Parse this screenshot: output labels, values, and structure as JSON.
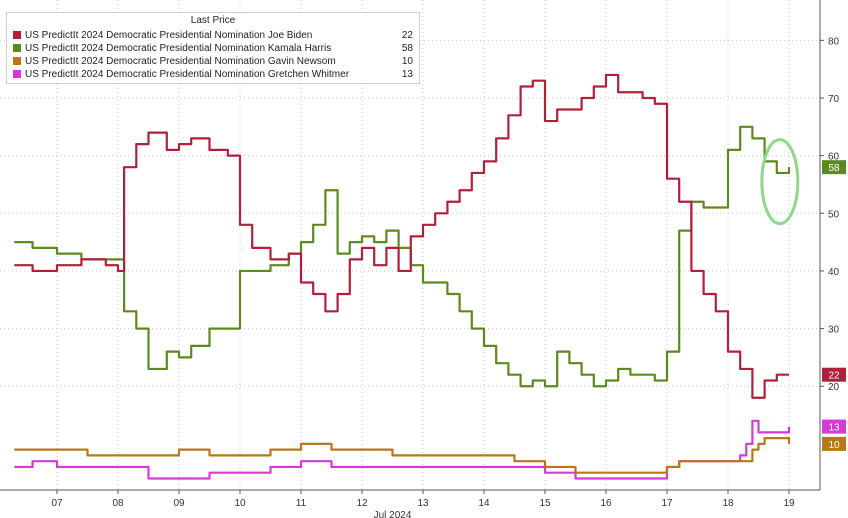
{
  "chart_data": {
    "type": "line",
    "legend_title": "Last Price",
    "legend_placement": "top-left",
    "x_tick_labels": [
      "07",
      "08",
      "09",
      "10",
      "11",
      "12",
      "13",
      "14",
      "15",
      "16",
      "17",
      "18",
      "19"
    ],
    "x_sublabel": "Jul 2024",
    "y_axis_side": "right",
    "ylim": [
      2,
      87
    ],
    "y_ticks": [
      20,
      30,
      40,
      50,
      60,
      70,
      80
    ],
    "grid": true,
    "series": [
      {
        "name": "US PredictIt 2024 Democratic Presidential Nomination Joe Biden",
        "last": "22",
        "color": "#b0203a",
        "x": [
          6.3,
          6.6,
          7.0,
          7.4,
          7.8,
          8.0,
          8.1,
          8.3,
          8.5,
          8.8,
          9.0,
          9.2,
          9.5,
          9.8,
          10.0,
          10.2,
          10.5,
          10.8,
          11.0,
          11.2,
          11.4,
          11.6,
          11.8,
          12.0,
          12.2,
          12.4,
          12.6,
          12.8,
          13.0,
          13.2,
          13.4,
          13.6,
          13.8,
          14.0,
          14.2,
          14.4,
          14.6,
          14.8,
          15.0,
          15.2,
          15.4,
          15.6,
          15.8,
          16.0,
          16.2,
          16.4,
          16.6,
          16.8,
          17.0,
          17.2,
          17.4,
          17.6,
          17.8,
          18.0,
          18.2,
          18.4,
          18.6,
          18.8,
          19.0
        ],
        "y": [
          41,
          40,
          41,
          42,
          41,
          40,
          58,
          62,
          64,
          61,
          62,
          63,
          61,
          60,
          48,
          44,
          42,
          43,
          38,
          36,
          33,
          36,
          42,
          44,
          41,
          44,
          40,
          46,
          48,
          50,
          52,
          54,
          57,
          59,
          63,
          67,
          72,
          73,
          66,
          68,
          68,
          70,
          72,
          74,
          71,
          71,
          70,
          69,
          56,
          52,
          40,
          36,
          33,
          26,
          23,
          18,
          21,
          22,
          22
        ]
      },
      {
        "name": "US PredictIt 2024 Democratic Presidential Nomination Kamala Harris",
        "last": "58",
        "color": "#5c8a1e",
        "x": [
          6.3,
          6.6,
          7.0,
          7.4,
          7.8,
          8.0,
          8.1,
          8.3,
          8.5,
          8.8,
          9.0,
          9.2,
          9.5,
          9.8,
          10.0,
          10.2,
          10.5,
          10.8,
          11.0,
          11.2,
          11.4,
          11.6,
          11.8,
          12.0,
          12.2,
          12.4,
          12.6,
          12.8,
          13.0,
          13.2,
          13.4,
          13.6,
          13.8,
          14.0,
          14.2,
          14.4,
          14.6,
          14.8,
          15.0,
          15.2,
          15.4,
          15.6,
          15.8,
          16.0,
          16.2,
          16.4,
          16.6,
          16.8,
          17.0,
          17.2,
          17.4,
          17.6,
          17.8,
          18.0,
          18.2,
          18.4,
          18.6,
          18.8,
          19.0
        ],
        "y": [
          45,
          44,
          43,
          42,
          42,
          42,
          33,
          30,
          23,
          26,
          25,
          27,
          30,
          30,
          40,
          40,
          41,
          43,
          45,
          48,
          54,
          43,
          45,
          46,
          45,
          47,
          44,
          41,
          38,
          38,
          36,
          33,
          30,
          27,
          24,
          22,
          20,
          21,
          20,
          26,
          24,
          22,
          20,
          21,
          23,
          22,
          22,
          21,
          26,
          47,
          52,
          51,
          51,
          61,
          65,
          63,
          59,
          57,
          58
        ]
      },
      {
        "name": "US PredictIt 2024 Democratic Presidential Nomination Gavin Newsom",
        "last": "10",
        "color": "#b8781a",
        "x": [
          6.3,
          7.0,
          7.5,
          8.0,
          8.5,
          9.0,
          9.5,
          10.0,
          10.5,
          11.0,
          11.5,
          12.0,
          12.5,
          13.0,
          13.5,
          14.0,
          14.5,
          15.0,
          15.5,
          16.0,
          16.5,
          16.8,
          17.0,
          17.2,
          17.5,
          17.8,
          18.0,
          18.2,
          18.4,
          18.5,
          18.6,
          18.8,
          19.0
        ],
        "y": [
          9,
          9,
          8,
          8,
          8,
          9,
          8,
          8,
          9,
          10,
          9,
          9,
          8,
          8,
          8,
          8,
          7,
          6,
          5,
          5,
          5,
          5,
          6,
          7,
          7,
          7,
          7,
          7,
          9,
          10,
          11,
          11,
          10
        ]
      },
      {
        "name": "US PredictIt 2024 Democratic Presidential Nomination Gretchen Whitmer",
        "last": "13",
        "color": "#d63ad6",
        "x": [
          6.3,
          6.6,
          7.0,
          7.5,
          8.0,
          8.5,
          9.0,
          9.5,
          10.0,
          10.5,
          11.0,
          11.5,
          12.0,
          12.5,
          13.0,
          13.5,
          14.0,
          14.5,
          15.0,
          15.5,
          16.0,
          16.5,
          16.8,
          17.0,
          17.2,
          17.5,
          17.8,
          18.0,
          18.2,
          18.3,
          18.4,
          18.5,
          18.7,
          18.9,
          19.0
        ],
        "y": [
          6,
          7,
          6,
          6,
          6,
          4,
          4,
          5,
          5,
          6,
          7,
          6,
          6,
          6,
          6,
          6,
          6,
          6,
          5,
          4,
          4,
          4,
          4,
          6,
          7,
          7,
          7,
          7,
          8,
          10,
          14,
          12,
          12,
          12,
          13
        ]
      }
    ]
  }
}
